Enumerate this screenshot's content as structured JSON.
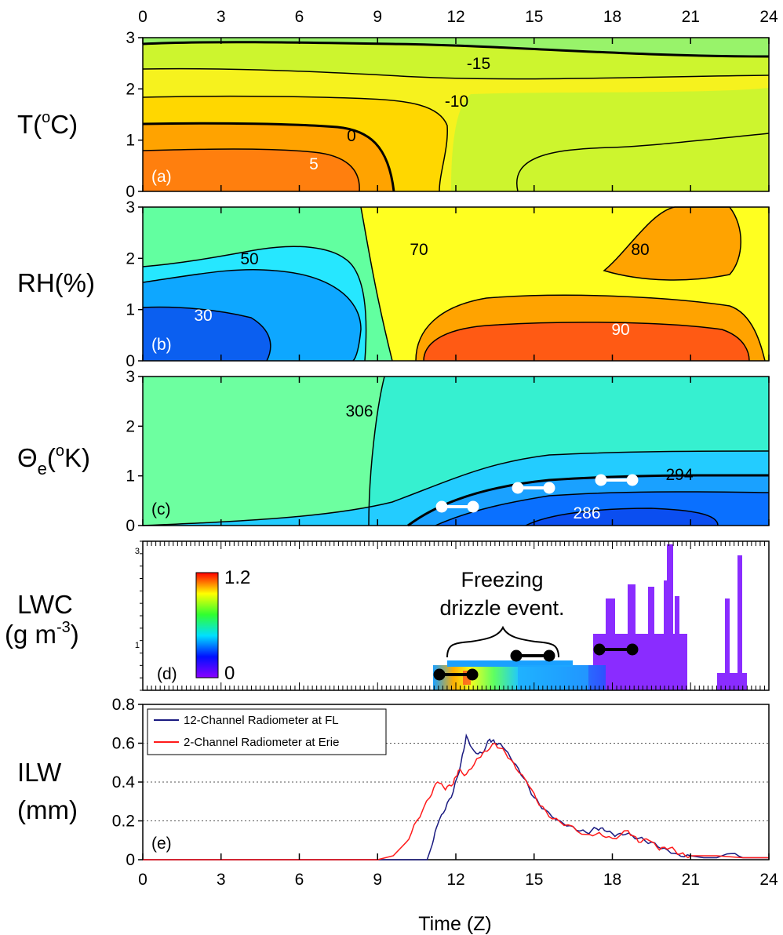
{
  "chart_data": [
    {
      "type": "heatmap",
      "panel": "(a)",
      "ylabel": "T(oC)",
      "x_range": [
        0,
        24
      ],
      "ylim": [
        0,
        3
      ],
      "contour_labels": [
        "-15",
        "-10",
        "0",
        "5"
      ],
      "colors": [
        "#ff7f0e",
        "#ffa300",
        "#ffd700",
        "#f6f21e",
        "#cdf52e",
        "#98f36a"
      ]
    },
    {
      "type": "heatmap",
      "panel": "(b)",
      "ylabel": "RH(%)",
      "x_range": [
        0,
        24
      ],
      "ylim": [
        0,
        3
      ],
      "contour_labels": [
        "50",
        "70",
        "80",
        "30",
        "90"
      ],
      "colors": [
        "#ff5a14",
        "#ffa300",
        "#ffff20",
        "#62ffa0",
        "#26e7ff",
        "#0ea7ff",
        "#0b5ff0"
      ]
    },
    {
      "type": "heatmap",
      "panel": "(c)",
      "ylabel": "Θe(oK)",
      "x_range": [
        0,
        24
      ],
      "ylim": [
        0,
        3
      ],
      "contour_labels": [
        "306",
        "294",
        "286"
      ],
      "colors": [
        "#6dffa0",
        "#36f0d0",
        "#23ccff",
        "#1aa1ff",
        "#0a70ff",
        "#0b4ef0"
      ]
    },
    {
      "type": "heatmap",
      "panel": "(d)",
      "ylabel": "LWC",
      "ylabel_units": "(g m-3)",
      "x_range": [
        0,
        24
      ],
      "ylim": [
        0,
        3
      ],
      "colorbar": {
        "min": "0",
        "max": "1.2"
      },
      "annotation": [
        "Freezing",
        "drizzle event."
      ]
    },
    {
      "type": "line",
      "panel": "(e)",
      "ylabel": "ILW",
      "ylabel_units": "(mm)",
      "xlabel": "Time (Z)",
      "xlim": [
        0,
        24
      ],
      "ylim": [
        0,
        0.8
      ],
      "x_ticks": [
        "0",
        "3",
        "6",
        "9",
        "12",
        "15",
        "18",
        "21",
        "24"
      ],
      "y_ticks": [
        "0",
        "0.2",
        "0.4",
        "0.6",
        "0.8"
      ],
      "gridlines_y": [
        0.2,
        0.4,
        0.6
      ],
      "legend_position": "top-left",
      "series": [
        {
          "name": "12-Channel Radiometer at FL",
          "color": "#1a1a80",
          "x": [
            0,
            8.5,
            10.9,
            11.1,
            11.3,
            11.6,
            11.9,
            12.2,
            12.4,
            12.7,
            13.0,
            13.3,
            13.5,
            13.8,
            14.2,
            14.6,
            15.0,
            15.4,
            16.0,
            16.5,
            17.0,
            17.4,
            17.7,
            18.1,
            18.5,
            19.0,
            19.5,
            20.0,
            20.5,
            21.0,
            21.5,
            22.0,
            22.4,
            23.0,
            24.0
          ],
          "y": [
            0,
            0,
            0,
            0.08,
            0.18,
            0.26,
            0.35,
            0.5,
            0.64,
            0.56,
            0.55,
            0.62,
            0.6,
            0.58,
            0.5,
            0.42,
            0.32,
            0.26,
            0.2,
            0.17,
            0.14,
            0.16,
            0.15,
            0.12,
            0.13,
            0.11,
            0.09,
            0.06,
            0.03,
            0.02,
            0.01,
            0.01,
            0.03,
            0.01,
            0.01
          ]
        },
        {
          "name": "2-Channel Radiometer at Erie",
          "color": "#ff1a1a",
          "x": [
            0,
            9.0,
            9.6,
            10.1,
            10.5,
            11.0,
            11.3,
            11.6,
            11.9,
            12.1,
            12.4,
            12.8,
            13.1,
            13.5,
            13.9,
            14.3,
            14.8,
            15.2,
            15.7,
            16.3,
            17.0,
            17.5,
            18.0,
            18.6,
            19.0,
            19.4,
            19.8,
            20.2,
            20.6,
            21.0,
            22.0,
            23.0,
            24.0
          ],
          "y": [
            0,
            0,
            0.02,
            0.09,
            0.2,
            0.32,
            0.4,
            0.36,
            0.39,
            0.46,
            0.44,
            0.52,
            0.56,
            0.6,
            0.55,
            0.47,
            0.38,
            0.28,
            0.21,
            0.18,
            0.13,
            0.14,
            0.11,
            0.15,
            0.09,
            0.1,
            0.05,
            0.06,
            0.03,
            0.02,
            0.02,
            0.01,
            0.01
          ]
        }
      ]
    }
  ]
}
